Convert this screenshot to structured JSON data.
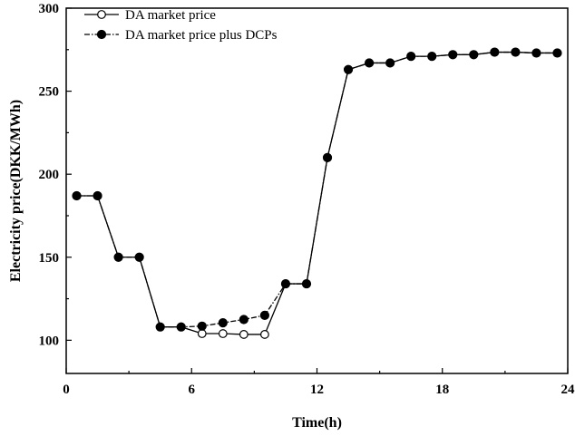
{
  "chart_data": {
    "type": "line",
    "xlabel": "Time(h)",
    "ylabel": "Electricity price(DKK/MWh)",
    "xlim": [
      0,
      24
    ],
    "ylim": [
      80,
      300
    ],
    "xticks": [
      0,
      6,
      12,
      18,
      24
    ],
    "yticks": [
      100,
      150,
      200,
      250,
      300
    ],
    "grid": false,
    "legend_position": "top-left",
    "series": [
      {
        "name": "DA market price",
        "marker": "open-circle",
        "line_style": "solid",
        "x": [
          0.5,
          1.5,
          2.5,
          3.5,
          4.5,
          5.5,
          6.5,
          7.5,
          8.5,
          9.5,
          10.5,
          11.5,
          12.5,
          13.5,
          14.5,
          15.5,
          16.5,
          17.5,
          18.5,
          19.5,
          20.5,
          21.5,
          22.5,
          23.5
        ],
        "values": [
          187,
          187,
          150,
          150,
          108,
          108,
          104,
          104,
          103.5,
          103.5,
          134,
          134,
          210,
          263,
          267,
          267,
          271,
          271,
          272,
          272,
          273.5,
          273.5,
          273,
          273
        ]
      },
      {
        "name": "DA market price plus DCPs",
        "marker": "filled-circle",
        "line_style": "dash-dot",
        "x": [
          0.5,
          1.5,
          2.5,
          3.5,
          4.5,
          5.5,
          6.5,
          7.5,
          8.5,
          9.5,
          10.5,
          11.5,
          12.5,
          13.5,
          14.5,
          15.5,
          16.5,
          17.5,
          18.5,
          19.5,
          20.5,
          21.5,
          22.5,
          23.5
        ],
        "values": [
          187,
          187,
          150,
          150,
          108,
          108,
          108.5,
          110.5,
          112.5,
          115,
          134,
          134,
          210,
          263,
          267,
          267,
          271,
          271,
          272,
          272,
          273.5,
          273.5,
          273,
          273
        ]
      }
    ]
  }
}
